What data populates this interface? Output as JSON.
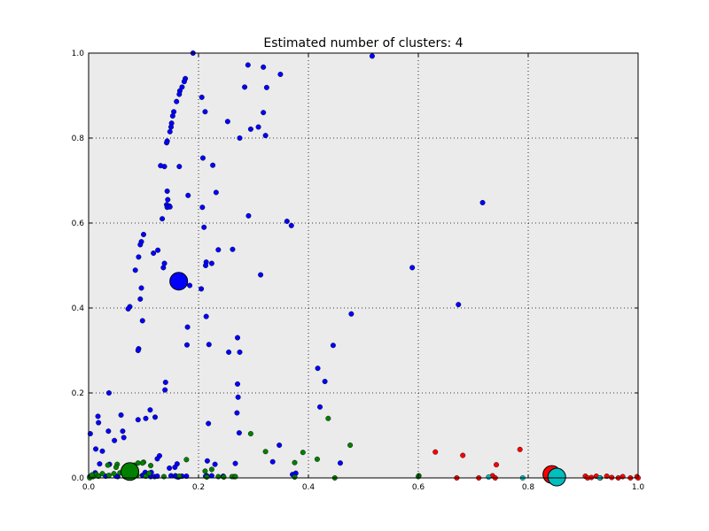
{
  "chart_data": {
    "type": "scatter",
    "title": "Estimated number of clusters: 4",
    "xlabel": "",
    "ylabel": "",
    "xlim": [
      0.0,
      1.0
    ],
    "ylim": [
      0.0,
      1.0
    ],
    "xticks": [
      "0.0",
      "0.2",
      "0.4",
      "0.6",
      "0.8",
      "1.0"
    ],
    "yticks": [
      "0.0",
      "0.2",
      "0.4",
      "0.6",
      "0.8",
      "1.0"
    ],
    "grid": true,
    "background_color": "#ebebeb",
    "series": [
      {
        "color": "#0000ff",
        "centroid": [
          0.164,
          0.463
        ],
        "x": [
          0.19,
          0.516,
          0.29,
          0.318,
          0.349,
          0.176,
          0.174,
          0.17,
          0.166,
          0.165,
          0.206,
          0.16,
          0.155,
          0.153,
          0.151,
          0.15,
          0.148,
          0.143,
          0.142,
          0.138,
          0.131,
          0.165,
          0.208,
          0.226,
          0.212,
          0.284,
          0.324,
          0.295,
          0.309,
          0.322,
          0.253,
          0.275,
          0.318,
          0.143,
          0.144,
          0.181,
          0.207,
          0.232,
          0.717,
          0.142,
          0.147,
          0.143,
          0.134,
          0.148,
          0.21,
          0.291,
          0.361,
          0.369,
          0.214,
          0.1,
          0.096,
          0.094,
          0.091,
          0.126,
          0.118,
          0.136,
          0.138,
          0.236,
          0.213,
          0.262,
          0.224,
          0.589,
          0.085,
          0.313,
          0.184,
          0.096,
          0.205,
          0.094,
          0.075,
          0.072,
          0.673,
          0.214,
          0.478,
          0.098,
          0.18,
          0.179,
          0.219,
          0.271,
          0.091,
          0.09,
          0.275,
          0.255,
          0.445,
          0.417,
          0.43,
          0.271,
          0.14,
          0.037,
          0.139,
          0.025,
          0.272,
          0.112,
          0.017,
          0.121,
          0.104,
          0.27,
          0.421,
          0.059,
          0.09,
          0.218,
          0.018,
          0.036,
          0.062,
          0.274,
          0.003,
          0.047,
          0.347,
          0.064,
          0.013,
          0.161,
          0.02,
          0.23,
          0.335,
          0.216,
          0.458,
          0.157,
          0.129,
          0.125,
          0.267,
          0.038,
          0.377,
          0.147,
          0.103,
          0.114,
          0.371,
          0.17,
          0.158,
          0.113,
          0.165,
          0.215,
          0.265,
          0.224,
          0.163,
          0.245,
          0.16,
          0.12,
          0.098,
          0.002,
          0.031,
          0.082,
          0.053,
          0.012,
          0.07,
          0.05,
          0.1,
          0.15,
          0.125,
          0.178,
          0.213,
          0.081
        ],
        "y": [
          1.0,
          0.993,
          0.972,
          0.967,
          0.95,
          0.94,
          0.933,
          0.92,
          0.911,
          0.903,
          0.896,
          0.886,
          0.862,
          0.852,
          0.835,
          0.826,
          0.815,
          0.793,
          0.789,
          0.733,
          0.735,
          0.733,
          0.753,
          0.736,
          0.862,
          0.92,
          0.919,
          0.821,
          0.826,
          0.806,
          0.839,
          0.8,
          0.86,
          0.675,
          0.655,
          0.665,
          0.637,
          0.672,
          0.648,
          0.643,
          0.64,
          0.637,
          0.61,
          0.638,
          0.59,
          0.617,
          0.604,
          0.594,
          0.508,
          0.573,
          0.556,
          0.549,
          0.52,
          0.536,
          0.529,
          0.495,
          0.505,
          0.537,
          0.5,
          0.538,
          0.505,
          0.495,
          0.489,
          0.478,
          0.453,
          0.447,
          0.445,
          0.421,
          0.403,
          0.398,
          0.408,
          0.38,
          0.386,
          0.37,
          0.355,
          0.313,
          0.314,
          0.33,
          0.304,
          0.3,
          0.296,
          0.296,
          0.312,
          0.258,
          0.227,
          0.221,
          0.225,
          0.2,
          0.207,
          0.063,
          0.19,
          0.16,
          0.145,
          0.143,
          0.14,
          0.153,
          0.167,
          0.148,
          0.137,
          0.128,
          0.13,
          0.11,
          0.11,
          0.106,
          0.104,
          0.088,
          0.077,
          0.095,
          0.068,
          0.033,
          0.033,
          0.032,
          0.038,
          0.04,
          0.035,
          0.025,
          0.052,
          0.045,
          0.034,
          0.032,
          0.011,
          0.023,
          0.013,
          0.013,
          0.008,
          0.004,
          0.005,
          0.003,
          0.003,
          0.005,
          0.003,
          0.005,
          0.002,
          0.004,
          0.003,
          0.003,
          0.006,
          0.003,
          0.004,
          0.005,
          0.003,
          0.012,
          0.005,
          0.004,
          0.007,
          0.005,
          0.004,
          0.004,
          0.004,
          0.002
        ]
      },
      {
        "color": "#008000",
        "centroid": [
          0.075,
          0.015
        ],
        "x": [
          0.295,
          0.436,
          0.476,
          0.39,
          0.322,
          0.416,
          0.375,
          0.178,
          0.224,
          0.212,
          0.261,
          0.246,
          0.113,
          0.1,
          0.098,
          0.09,
          0.083,
          0.052,
          0.035,
          0.025,
          0.014,
          0.008,
          0.002,
          0.006,
          0.018,
          0.037,
          0.046,
          0.057,
          0.066,
          0.088,
          0.104,
          0.11,
          0.137,
          0.165,
          0.215,
          0.236,
          0.267,
          0.375,
          0.448,
          0.601,
          0.6,
          0.082,
          0.05
        ],
        "y": [
          0.104,
          0.14,
          0.077,
          0.06,
          0.062,
          0.044,
          0.036,
          0.043,
          0.02,
          0.016,
          0.003,
          0.002,
          0.029,
          0.037,
          0.035,
          0.035,
          0.03,
          0.032,
          0.03,
          0.01,
          0.008,
          0.003,
          0.0,
          0.007,
          0.004,
          0.006,
          0.01,
          0.012,
          0.003,
          0.006,
          0.004,
          0.011,
          0.003,
          0.004,
          0.002,
          0.003,
          0.003,
          0.002,
          0.0,
          0.005,
          0.003,
          0.01,
          0.025
        ]
      },
      {
        "color": "#ff0000",
        "centroid": [
          0.843,
          0.008
        ],
        "x": [
          0.631,
          0.681,
          0.785,
          0.742,
          0.735,
          0.67,
          0.71,
          0.74,
          0.844,
          0.863,
          0.904,
          0.915,
          0.924,
          0.943,
          0.952,
          0.972,
          0.998,
          1.0,
          0.986,
          0.964,
          0.931,
          0.908
        ],
        "y": [
          0.061,
          0.053,
          0.067,
          0.031,
          0.005,
          0.0,
          0.0,
          0.0,
          0.013,
          0.008,
          0.004,
          0.001,
          0.004,
          0.004,
          0.001,
          0.003,
          0.003,
          0.0,
          0.0,
          0.0,
          0.0,
          0.0
        ]
      },
      {
        "color": "#00bfbf",
        "centroid": [
          0.852,
          0.002
        ],
        "x": [
          0.728,
          0.79,
          0.852,
          0.857,
          0.93
        ],
        "y": [
          0.002,
          0.0,
          0.002,
          0.001,
          0.0
        ]
      }
    ]
  }
}
